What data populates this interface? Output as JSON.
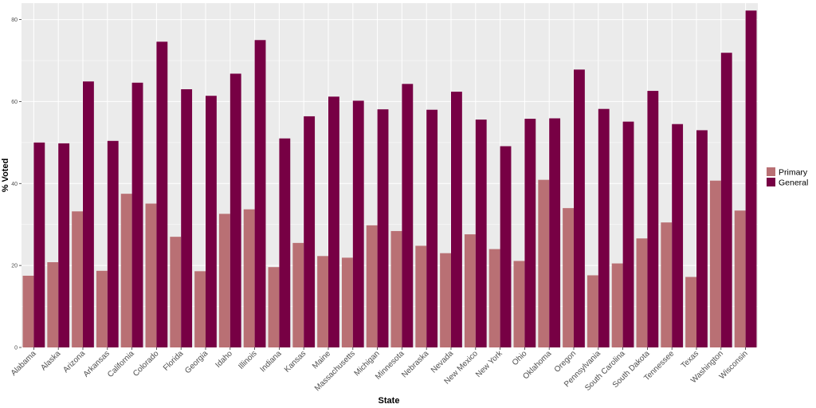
{
  "chart_data": {
    "type": "bar",
    "xlabel": "State",
    "ylabel": "% Voted",
    "ylim": [
      0,
      84
    ],
    "yticks": [
      0,
      20,
      40,
      60,
      80
    ],
    "grid": true,
    "legend_position": "right",
    "categories": [
      "Alabama",
      "Alaska",
      "Arizona",
      "Arkansas",
      "California",
      "Colorado",
      "Florida",
      "Georgia",
      "Idaho",
      "Illinois",
      "Indiana",
      "Kansas",
      "Maine",
      "Massachusetts",
      "Michigan",
      "Minnesota",
      "Nebraska",
      "Nevada",
      "New Mexico",
      "New York",
      "Ohio",
      "Oklahoma",
      "Oregon",
      "Pennsylvania",
      "South Carolina",
      "South Dakota",
      "Tennessee",
      "Texas",
      "Washington",
      "Wisconsin"
    ],
    "series": [
      {
        "name": "Primary",
        "color": "#b97074",
        "values": [
          17.5,
          20.8,
          33.2,
          18.7,
          37.5,
          35.1,
          27.0,
          18.6,
          32.6,
          33.7,
          19.6,
          25.5,
          22.3,
          21.9,
          29.8,
          28.4,
          24.8,
          23.0,
          27.6,
          24.0,
          21.1,
          40.9,
          34.0,
          17.6,
          20.5,
          26.6,
          30.5,
          17.2,
          40.7,
          33.4
        ]
      },
      {
        "name": "General",
        "color": "#770044",
        "values": [
          50.0,
          49.8,
          64.9,
          50.4,
          64.6,
          74.6,
          63.0,
          61.4,
          66.8,
          75.0,
          51.0,
          56.4,
          61.2,
          60.2,
          58.1,
          64.3,
          58.0,
          62.4,
          55.6,
          49.1,
          55.8,
          55.9,
          67.8,
          58.2,
          55.1,
          62.6,
          54.5,
          53.0,
          71.9,
          82.2
        ]
      }
    ]
  }
}
